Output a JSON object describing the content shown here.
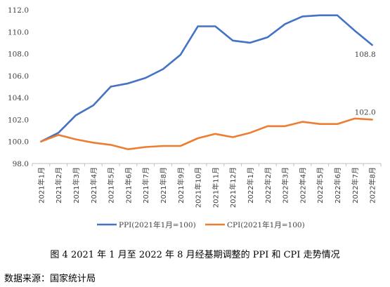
{
  "chart_data": {
    "type": "line",
    "categories": [
      "2021年1月",
      "2021年2月",
      "2021年3月",
      "2021年4月",
      "2021年5月",
      "2021年6月",
      "2021年7月",
      "2021年8月",
      "2021年9月",
      "2021年10月",
      "2021年11月",
      "2021年12月",
      "2022年1月",
      "2022年2月",
      "2022年3月",
      "2022年4月",
      "2022年5月",
      "2022年6月",
      "2022年7月",
      "2022年8月"
    ],
    "series": [
      {
        "name": "PPI(2021年1月=100)",
        "color": "#4472C4",
        "values": [
          100.0,
          100.8,
          102.4,
          103.3,
          105.0,
          105.3,
          105.8,
          106.6,
          107.9,
          110.5,
          110.5,
          109.2,
          109.0,
          109.5,
          110.7,
          111.4,
          111.5,
          111.5,
          110.1,
          108.8
        ]
      },
      {
        "name": "CPI(2021年1月=100)",
        "color": "#ED7D31",
        "values": [
          100.0,
          100.6,
          100.2,
          99.9,
          99.7,
          99.3,
          99.5,
          99.6,
          99.6,
          100.3,
          100.7,
          100.4,
          100.8,
          101.4,
          101.4,
          101.8,
          101.6,
          101.6,
          102.1,
          102.0
        ]
      }
    ],
    "ylim": [
      98.0,
      112.0
    ],
    "yticks": [
      "98.0",
      "100.0",
      "102.0",
      "104.0",
      "106.0",
      "108.0",
      "110.0",
      "112.0"
    ],
    "grid": false,
    "legend_position": "bottom",
    "end_labels": [
      "108.8",
      "102.0"
    ]
  },
  "caption": "图 4  2021 年 1 月至 2022 年 8 月经基期调整的 PPI 和 CPI 走势情况",
  "source": "数据来源：国家统计局"
}
